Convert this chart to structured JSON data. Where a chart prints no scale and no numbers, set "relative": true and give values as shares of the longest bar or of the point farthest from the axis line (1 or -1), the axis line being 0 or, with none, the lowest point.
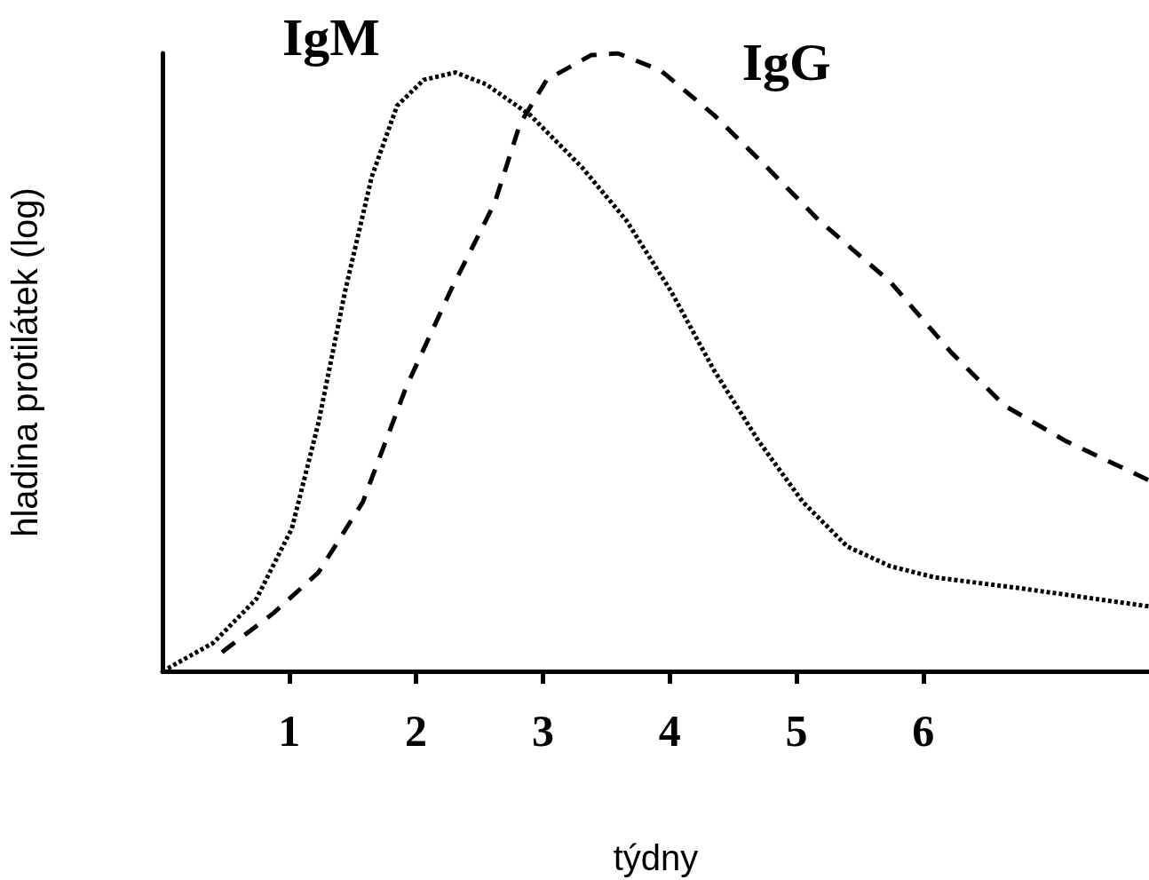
{
  "chart_data": {
    "type": "line",
    "xlabel": "týdny",
    "ylabel": "hladina protilátek (log)",
    "relative": true,
    "xlim": [
      0,
      7.78
    ],
    "xticks": [
      1,
      2,
      3,
      4,
      5,
      6
    ],
    "tick_labels": "x",
    "grid": false,
    "legend": false,
    "marker": "none",
    "series": [
      {
        "name": "IgM",
        "color": "#000000",
        "line_style": "dotted",
        "x": [
          0,
          0.4,
          0.74,
          1.02,
          1.23,
          1.44,
          1.65,
          1.85,
          2.06,
          2.31,
          2.55,
          2.9,
          3.31,
          3.66,
          4.01,
          4.35,
          4.7,
          5.05,
          5.4,
          5.74,
          6.09,
          6.78,
          7.78
        ],
        "values": [
          0,
          0.046,
          0.117,
          0.231,
          0.402,
          0.615,
          0.8,
          0.915,
          0.957,
          0.969,
          0.95,
          0.9,
          0.815,
          0.729,
          0.615,
          0.487,
          0.373,
          0.274,
          0.202,
          0.17,
          0.152,
          0.134,
          0.105
        ]
      },
      {
        "name": "IgG",
        "color": "#000000",
        "line_style": "dashed",
        "x": [
          0.47,
          0.88,
          1.23,
          1.58,
          1.92,
          2.27,
          2.62,
          2.82,
          3.03,
          3.38,
          3.59,
          3.93,
          4.35,
          4.77,
          5.18,
          5.74,
          6.22,
          6.64,
          7.12,
          7.78
        ],
        "values": [
          0.031,
          0.095,
          0.16,
          0.274,
          0.459,
          0.615,
          0.758,
          0.886,
          0.957,
          0.997,
          1,
          0.972,
          0.9,
          0.815,
          0.729,
          0.63,
          0.516,
          0.43,
          0.373,
          0.309
        ]
      }
    ]
  }
}
